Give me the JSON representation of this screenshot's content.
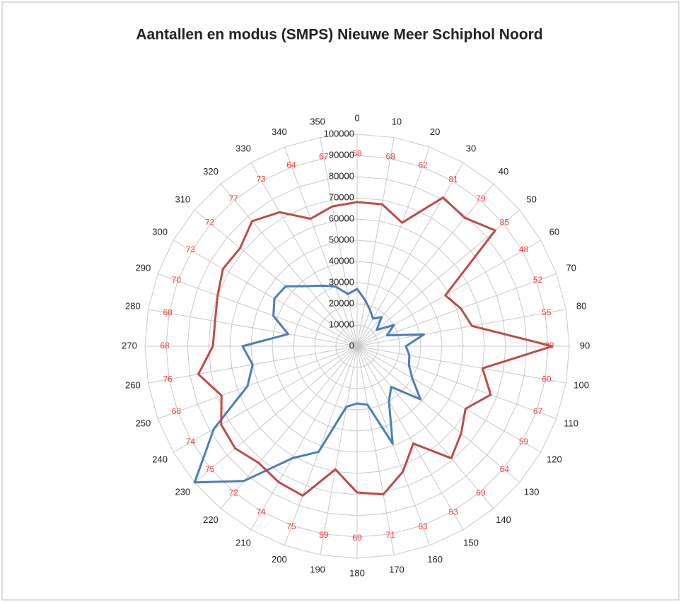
{
  "chart_data": {
    "type": "radar",
    "title": "Aantallen en modus (SMPS) Nieuwe Meer Schiphol Noord",
    "categories": [
      "0",
      "10",
      "20",
      "30",
      "40",
      "50",
      "60",
      "70",
      "80",
      "90",
      "100",
      "110",
      "120",
      "130",
      "140",
      "150",
      "160",
      "170",
      "180",
      "190",
      "200",
      "210",
      "220",
      "230",
      "240",
      "250",
      "260",
      "270",
      "280",
      "290",
      "300",
      "310",
      "320",
      "330",
      "340",
      "350"
    ],
    "series": [
      {
        "color": "#4a7ebb",
        "values": [
          27000,
          22000,
          18000,
          15000,
          18000,
          12000,
          20000,
          15000,
          32000,
          23000,
          25000,
          26000,
          30000,
          39000,
          25000,
          30000,
          49000,
          28000,
          27000,
          29000,
          53000,
          61000,
          83000,
          100000,
          78000,
          55000,
          50000,
          54000,
          33000,
          42000,
          45000,
          44000,
          37000,
          33000,
          30000,
          25000
        ]
      },
      {
        "color": "#be4b48",
        "values": [
          68000,
          68000,
          62000,
          81000,
          79000,
          85000,
          48000,
          52000,
          55000,
          92000,
          60000,
          67000,
          59000,
          64000,
          69000,
          53000,
          63000,
          71000,
          69000,
          59000,
          75000,
          74000,
          72000,
          75000,
          74000,
          68000,
          76000,
          68000,
          68000,
          70000,
          73000,
          72000,
          77000,
          73000,
          64000,
          67000
        ],
        "value_labels": [
          "68",
          "68",
          "62",
          "81",
          "79",
          "85",
          "48",
          "52",
          "55",
          "92",
          "60",
          "67",
          "59",
          "64",
          "69",
          "53",
          "63",
          "71",
          "69",
          "59",
          "75",
          "74",
          "72",
          "75",
          "74",
          "68",
          "76",
          "68",
          "68",
          "70",
          "73",
          "72",
          "77",
          "73",
          "64",
          "67"
        ],
        "label_color": "#ff3b3b"
      }
    ],
    "ylim": [
      0,
      100000
    ],
    "yticks": [
      0,
      10000,
      20000,
      30000,
      40000,
      50000,
      60000,
      70000,
      80000,
      90000,
      100000
    ],
    "grid": true
  }
}
